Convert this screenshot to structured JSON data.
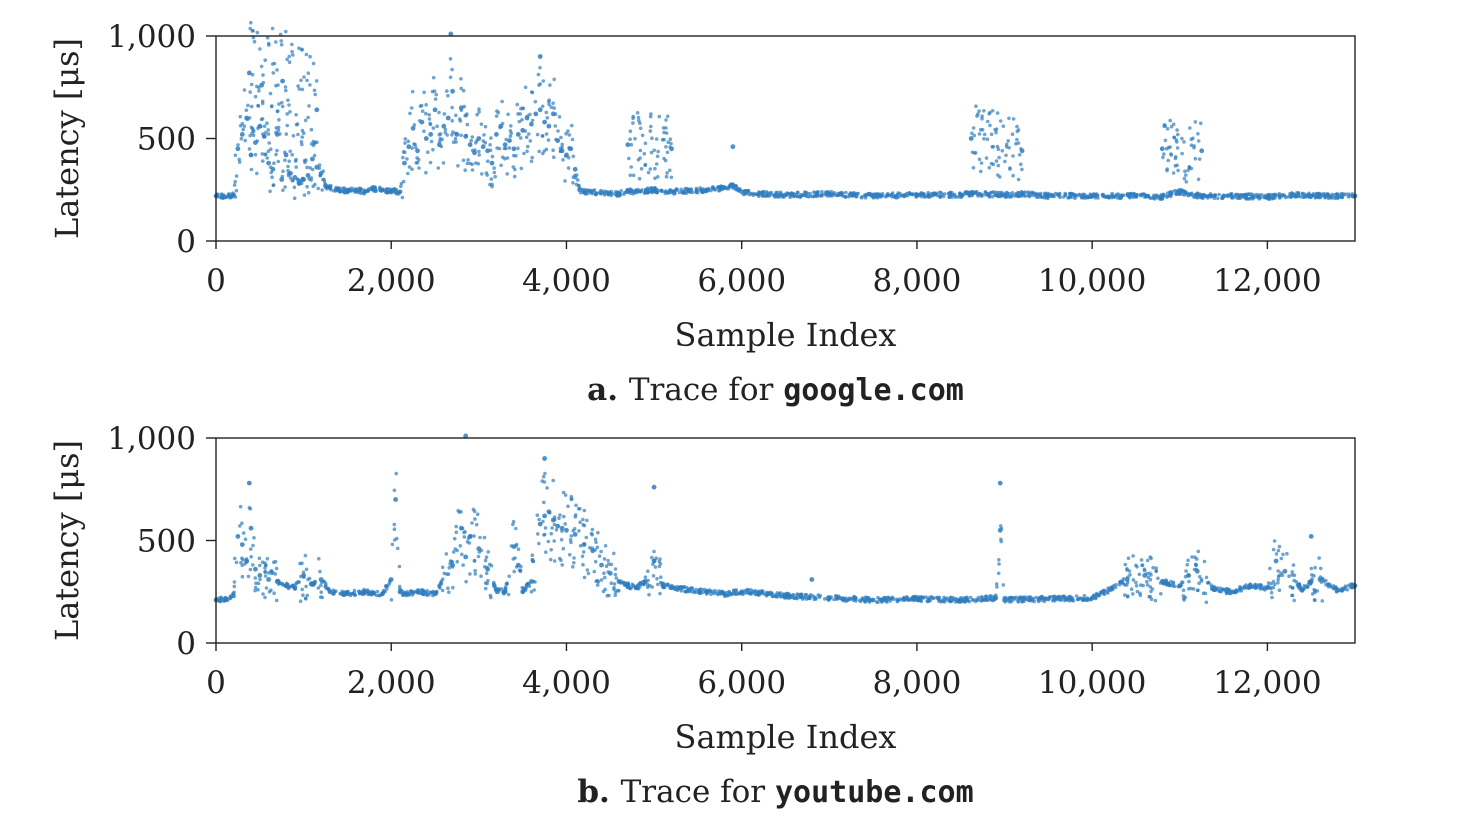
{
  "colors": {
    "series": "#2f7dbf",
    "axis": "#222222"
  },
  "chart_data": [
    {
      "type": "scatter",
      "title": "",
      "caption": {
        "letter": "a.",
        "text": "Trace for",
        "domain": "google.com"
      },
      "xlabel": "Sample Index",
      "ylabel": "Latency [μs]",
      "xlim": [
        0,
        13000
      ],
      "ylim": [
        0,
        1000
      ],
      "xticks": [
        0,
        2000,
        4000,
        6000,
        8000,
        10000,
        12000
      ],
      "xtick_labels": [
        "0",
        "2,000",
        "4,000",
        "6,000",
        "8,000",
        "10,000",
        "12,000"
      ],
      "yticks": [
        0,
        500,
        1000
      ],
      "ytick_labels": [
        "0",
        "500",
        "1,000"
      ],
      "grid": false,
      "series": [
        {
          "x": [
            0,
            100,
            200,
            250,
            300,
            350,
            400,
            450,
            500,
            550,
            600,
            650,
            700,
            750,
            800,
            850,
            900,
            950,
            1000,
            1050,
            1100,
            1150,
            1200,
            1250,
            1300,
            1400,
            1500,
            1600,
            1700,
            1800,
            1900,
            2000,
            2100,
            2150,
            2200,
            2250,
            2300,
            2350,
            2400,
            2450,
            2500,
            2550,
            2600,
            2650,
            2700,
            2750,
            2800,
            2850,
            2900,
            2950,
            3000,
            3050,
            3100,
            3150,
            3200,
            3250,
            3300,
            3350,
            3400,
            3450,
            3500,
            3550,
            3600,
            3650,
            3700,
            3750,
            3800,
            3850,
            3900,
            3950,
            4000,
            4050,
            4100,
            4150,
            4200,
            4400,
            4600,
            4700,
            4800,
            5000,
            5200,
            5400,
            5600,
            5800,
            5900,
            6000,
            6200,
            6500,
            7000,
            7500,
            8000,
            8500,
            8600,
            9000,
            9200,
            9500,
            10000,
            10500,
            10800,
            10900,
            11000,
            11100,
            11250,
            11500,
            12000,
            12300,
            12500,
            13000,
            380,
            520,
            760,
            1150,
            2680,
            3700,
            4700,
            5200,
            5900,
            8620,
            9200,
            10800,
            11250
          ],
          "y": [
            220,
            215,
            225,
            450,
            520,
            600,
            420,
            480,
            560,
            510,
            380,
            350,
            520,
            300,
            420,
            330,
            310,
            280,
            300,
            320,
            400,
            360,
            330,
            270,
            260,
            250,
            245,
            250,
            240,
            255,
            250,
            245,
            240,
            380,
            460,
            550,
            440,
            580,
            500,
            520,
            640,
            470,
            560,
            600,
            730,
            520,
            650,
            510,
            470,
            430,
            500,
            460,
            440,
            380,
            520,
            560,
            470,
            490,
            450,
            520,
            540,
            600,
            570,
            620,
            640,
            580,
            560,
            620,
            490,
            440,
            420,
            450,
            350,
            250,
            240,
            235,
            230,
            245,
            240,
            250,
            240,
            245,
            250,
            260,
            270,
            240,
            230,
            225,
            230,
            220,
            225,
            225,
            230,
            225,
            230,
            220,
            220,
            220,
            215,
            230,
            240,
            225,
            220,
            220,
            215,
            225,
            220,
            220,
            820,
            760,
            780,
            640,
            1010,
            900,
            470,
            450,
            460,
            500,
            440,
            450,
            440
          ]
        }
      ]
    },
    {
      "type": "scatter",
      "title": "",
      "caption": {
        "letter": "b.",
        "text": "Trace for",
        "domain": "youtube.com"
      },
      "xlabel": "Sample Index",
      "ylabel": "Latency [μs]",
      "xlim": [
        0,
        13000
      ],
      "ylim": [
        0,
        1000
      ],
      "xticks": [
        0,
        2000,
        4000,
        6000,
        8000,
        10000,
        12000
      ],
      "xtick_labels": [
        "0",
        "2,000",
        "4,000",
        "6,000",
        "8,000",
        "10,000",
        "12,000"
      ],
      "yticks": [
        0,
        500,
        1000
      ],
      "ytick_labels": [
        "0",
        "500",
        "1,000"
      ],
      "grid": false,
      "series": [
        {
          "x": [
            0,
            100,
            200,
            250,
            300,
            350,
            400,
            450,
            500,
            600,
            700,
            800,
            900,
            1000,
            1100,
            1200,
            1300,
            1500,
            1700,
            1900,
            2000,
            2050,
            2100,
            2150,
            2300,
            2500,
            2700,
            2800,
            2850,
            2900,
            3000,
            3100,
            3200,
            3300,
            3400,
            3450,
            3500,
            3600,
            3700,
            3750,
            3800,
            3850,
            3900,
            3950,
            4000,
            4100,
            4200,
            4300,
            4400,
            4500,
            4600,
            4700,
            4800,
            4900,
            5000,
            5100,
            5200,
            5400,
            5600,
            5800,
            6000,
            6200,
            6500,
            7000,
            7500,
            8000,
            8500,
            8900,
            8950,
            9000,
            9500,
            10000,
            10200,
            10400,
            10600,
            10800,
            11000,
            11100,
            11200,
            11400,
            11600,
            11800,
            12000,
            12100,
            12200,
            12400,
            12500,
            12600,
            12800,
            13000,
            380,
            2850,
            3750,
            5000,
            6800,
            8950,
            12500
          ],
          "y": [
            210,
            215,
            230,
            520,
            480,
            400,
            560,
            360,
            330,
            310,
            300,
            280,
            270,
            330,
            290,
            310,
            250,
            240,
            250,
            240,
            310,
            700,
            250,
            240,
            250,
            240,
            380,
            560,
            420,
            520,
            460,
            360,
            260,
            250,
            470,
            380,
            250,
            300,
            580,
            620,
            640,
            600,
            570,
            560,
            550,
            530,
            480,
            450,
            380,
            340,
            300,
            280,
            270,
            300,
            400,
            280,
            270,
            260,
            250,
            240,
            250,
            245,
            230,
            220,
            210,
            215,
            210,
            220,
            550,
            210,
            215,
            220,
            260,
            310,
            330,
            300,
            280,
            330,
            350,
            260,
            250,
            280,
            270,
            400,
            350,
            260,
            300,
            310,
            260,
            280,
            780,
            1010,
            900,
            760,
            310,
            780,
            520
          ]
        }
      ]
    }
  ]
}
